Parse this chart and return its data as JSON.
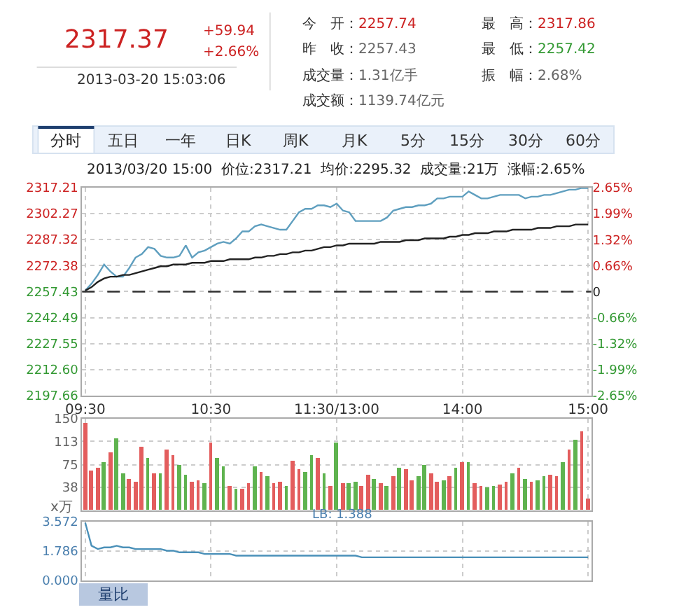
{
  "chart_data": [
    {
      "type": "line",
      "subtitle": "2013/03/20 15:00  价位:2317.21  均价:2295.32  成交量:21万  涨幅:2.65%",
      "annotations": [
        "2317.37",
        "+59.94",
        "+2.66%",
        "2013-03-20 15:03:06",
        "今　开：2257.74",
        "昨　收：2257.43",
        "成交量：1.31亿手",
        "成交额：1139.74亿元",
        "最　高：2317.86",
        "最　低：2257.42",
        "振　幅：2.68%",
        "分时",
        "五日",
        "一年",
        "日K",
        "周K",
        "月K",
        "5分",
        "15分",
        "30分",
        "60分"
      ],
      "categories": [
        "09:30",
        null,
        null,
        null,
        null,
        null,
        null,
        null,
        null,
        null,
        null,
        null,
        null,
        null,
        null,
        null,
        null,
        null,
        null,
        null,
        "10:30",
        null,
        null,
        null,
        null,
        null,
        null,
        null,
        null,
        null,
        null,
        null,
        null,
        null,
        null,
        null,
        null,
        null,
        null,
        null,
        "11:30/13:00",
        null,
        null,
        null,
        null,
        null,
        null,
        null,
        null,
        null,
        null,
        null,
        null,
        null,
        null,
        null,
        null,
        null,
        null,
        null,
        "14:00",
        null,
        null,
        null,
        null,
        null,
        null,
        null,
        null,
        null,
        null,
        null,
        null,
        null,
        null,
        null,
        null,
        null,
        null,
        null,
        "15:00"
      ],
      "series": [
        {
          "color": "#5f9fbf",
          "values": [
            2258,
            2262,
            2267,
            2273,
            2269,
            2266,
            2266,
            2271,
            2277,
            2279,
            2283,
            2282,
            2278,
            2277,
            2277,
            2278,
            2284,
            2277,
            2280,
            2281,
            2283,
            2285,
            2286,
            2285,
            2288,
            2292,
            2292,
            2295,
            2296,
            2295,
            2294,
            2293,
            2293,
            2298,
            2303,
            2305,
            2305,
            2307,
            2307,
            2306,
            2308,
            2304,
            2303,
            2298,
            2298,
            2298,
            2298,
            2298,
            2300,
            2304,
            2305,
            2306,
            2306,
            2307,
            2307,
            2308,
            2311,
            2311,
            2312,
            2312,
            2312,
            2315,
            2313,
            2311,
            2311,
            2312,
            2313,
            2313,
            2313,
            2313,
            2311,
            2312,
            2312,
            2313,
            2313,
            2314,
            2315,
            2316,
            2316,
            2317,
            2317
          ]
        },
        {
          "color": "#222222",
          "values": [
            2258,
            2260,
            2263,
            2265,
            2266,
            2266,
            2267,
            2267,
            2268,
            2269,
            2270,
            2271,
            2272,
            2272,
            2273,
            2273,
            2273,
            2274,
            2274,
            2274,
            2275,
            2275,
            2275,
            2276,
            2276,
            2276,
            2276,
            2277,
            2277,
            2278,
            2278,
            2279,
            2279,
            2280,
            2280,
            2281,
            2281,
            2282,
            2283,
            2283,
            2284,
            2284,
            2285,
            2285,
            2285,
            2285,
            2285,
            2286,
            2286,
            2286,
            2286,
            2287,
            2287,
            2287,
            2288,
            2288,
            2288,
            2288,
            2289,
            2289,
            2290,
            2290,
            2291,
            2291,
            2291,
            2292,
            2292,
            2292,
            2293,
            2293,
            2293,
            2293,
            2294,
            2294,
            2294,
            2295,
            2295,
            2295,
            2296,
            2296,
            2296
          ]
        }
      ],
      "ylim": [
        2197.66,
        2317.21
      ],
      "yticks": [
        2197.66,
        {
          "value": 2212.6,
          "label": "2212.60"
        },
        2227.55,
        2242.49,
        2257.43,
        2272.38,
        2287.32,
        2302.27,
        2317.21
      ],
      "y2lim": [
        -2.65,
        2.65
      ],
      "y2ticks": [
        {
          "value": -2.65,
          "label": "-2.65%"
        },
        {
          "value": -1.99,
          "label": "-1.99%"
        },
        {
          "value": -1.32,
          "label": "-1.32%"
        },
        {
          "value": -0.66,
          "label": "-0.66%"
        },
        0,
        {
          "value": 0.66,
          "label": "0.66%"
        },
        {
          "value": 1.32,
          "label": "1.32%"
        },
        {
          "value": 1.99,
          "label": "1.99%"
        },
        {
          "value": 2.65,
          "label": "2.65%"
        }
      ],
      "ref_lines": [
        {
          "axis": "y",
          "value": 2257.43,
          "color": "#333333",
          "line_style": "dashed"
        }
      ],
      "grid": true,
      "marker": "none",
      "line_style": "solid"
    },
    {
      "type": "bar",
      "ylabel": "x万",
      "categories": [
        null,
        null,
        null,
        null,
        null,
        null,
        null,
        null,
        null,
        null,
        null,
        null,
        null,
        null,
        null,
        null,
        null,
        null,
        null,
        null,
        null,
        null,
        null,
        null,
        null,
        null,
        null,
        null,
        null,
        null,
        null,
        null,
        null,
        null,
        null,
        null,
        null,
        null,
        null,
        null,
        null,
        null,
        null,
        null,
        null,
        null,
        null,
        null,
        null,
        null,
        null,
        null,
        null,
        null,
        null,
        null,
        null,
        null,
        null,
        null,
        null,
        null,
        null,
        null,
        null,
        null,
        null,
        null,
        null,
        null,
        null,
        null,
        null,
        null,
        null,
        null,
        null,
        null,
        null,
        null,
        null
      ],
      "values": [
        142,
        65,
        70,
        80,
        95,
        119,
        60,
        52,
        48,
        104,
        85,
        60,
        60,
        100,
        90,
        75,
        58,
        48,
        50,
        45,
        110,
        85,
        72,
        40,
        35,
        35,
        45,
        72,
        62,
        55,
        45,
        48,
        40,
        82,
        68,
        62,
        90,
        85,
        60,
        40,
        112,
        45,
        45,
        48,
        40,
        58,
        52,
        45,
        40,
        55,
        70,
        68,
        50,
        55,
        75,
        60,
        48,
        50,
        55,
        70,
        78,
        80,
        45,
        40,
        38,
        40,
        42,
        48,
        60,
        70,
        52,
        48,
        50,
        55,
        58,
        55,
        80,
        100,
        115,
        130,
        20
      ],
      "colors": [
        "#e35d5d",
        "#e35d5d",
        "#e35d5d",
        "#5fb34f",
        "#e35d5d",
        "#5fb34f",
        "#5fb34f",
        "#e35d5d",
        "#e35d5d",
        "#e35d5d",
        "#5fb34f",
        "#e35d5d",
        "#5fb34f",
        "#e35d5d",
        "#e35d5d",
        "#5fb34f",
        "#5fb34f",
        "#e35d5d",
        "#e35d5d",
        "#5fb34f",
        "#e35d5d",
        "#5fb34f",
        "#5fb34f",
        "#e35d5d",
        "#5fb34f",
        "#e35d5d",
        "#e35d5d",
        "#5fb34f",
        "#e35d5d",
        "#5fb34f",
        "#e35d5d",
        "#e35d5d",
        "#5fb34f",
        "#e35d5d",
        "#e35d5d",
        "#5fb34f",
        "#5fb34f",
        "#e35d5d",
        "#5fb34f",
        "#e35d5d",
        "#5fb34f",
        "#e35d5d",
        "#5fb34f",
        "#5fb34f",
        "#e35d5d",
        "#e35d5d",
        "#5fb34f",
        "#e35d5d",
        "#5fb34f",
        "#e35d5d",
        "#5fb34f",
        "#e35d5d",
        "#e35d5d",
        "#5fb34f",
        "#5fb34f",
        "#e35d5d",
        "#e35d5d",
        "#5fb34f",
        "#e35d5d",
        "#5fb34f",
        "#e35d5d",
        "#5fb34f",
        "#e35d5d",
        "#e35d5d",
        "#5fb34f",
        "#5fb34f",
        "#e35d5d",
        "#e35d5d",
        "#5fb34f",
        "#e35d5d",
        "#5fb34f",
        "#e35d5d",
        "#5fb34f",
        "#5fb34f",
        "#e35d5d",
        "#e35d5d",
        "#5fb34f",
        "#e35d5d",
        "#5fb34f",
        "#e35d5d",
        "#e35d5d"
      ],
      "ylim": [
        0,
        150
      ],
      "yticks": [
        38,
        75,
        113,
        150
      ],
      "grid": true,
      "tick_labels": "y"
    },
    {
      "type": "line",
      "annotations": [
        "LB: 1.388",
        "量比"
      ],
      "categories": [
        null,
        null,
        null,
        null,
        null,
        null,
        null,
        null,
        null,
        null,
        null,
        null,
        null,
        null,
        null,
        null,
        null,
        null,
        null,
        null,
        null,
        null,
        null,
        null,
        null,
        null,
        null,
        null,
        null,
        null,
        null,
        null,
        null,
        null,
        null,
        null,
        null,
        null,
        null,
        null,
        null,
        null,
        null,
        null,
        null,
        null,
        null,
        null,
        null,
        null,
        null,
        null,
        null,
        null,
        null,
        null,
        null,
        null,
        null,
        null,
        null,
        null,
        null,
        null,
        null,
        null,
        null,
        null,
        null,
        null,
        null,
        null,
        null,
        null,
        null,
        null,
        null,
        null,
        null,
        null,
        null
      ],
      "series": [
        {
          "color": "#4a90b8",
          "values": [
            3.5,
            2.1,
            1.9,
            2.0,
            2.0,
            2.1,
            2.0,
            2.0,
            1.9,
            1.9,
            1.9,
            1.9,
            1.9,
            1.8,
            1.8,
            1.7,
            1.7,
            1.7,
            1.7,
            1.6,
            1.6,
            1.6,
            1.6,
            1.6,
            1.5,
            1.5,
            1.5,
            1.5,
            1.5,
            1.5,
            1.5,
            1.5,
            1.5,
            1.5,
            1.5,
            1.5,
            1.5,
            1.5,
            1.5,
            1.5,
            1.5,
            1.5,
            1.5,
            1.5,
            1.4,
            1.4,
            1.4,
            1.4,
            1.4,
            1.4,
            1.4,
            1.4,
            1.4,
            1.4,
            1.4,
            1.4,
            1.4,
            1.4,
            1.4,
            1.4,
            1.4,
            1.4,
            1.4,
            1.4,
            1.4,
            1.4,
            1.4,
            1.4,
            1.4,
            1.4,
            1.4,
            1.4,
            1.4,
            1.4,
            1.4,
            1.4,
            1.4,
            1.4,
            1.4,
            1.4,
            1.4
          ]
        }
      ],
      "ylim": [
        0,
        3.572
      ],
      "yticks": [
        {
          "value": 0,
          "label": "0.000"
        },
        1.786,
        3.572
      ],
      "grid": true,
      "tick_labels": "y",
      "marker": "none"
    }
  ]
}
